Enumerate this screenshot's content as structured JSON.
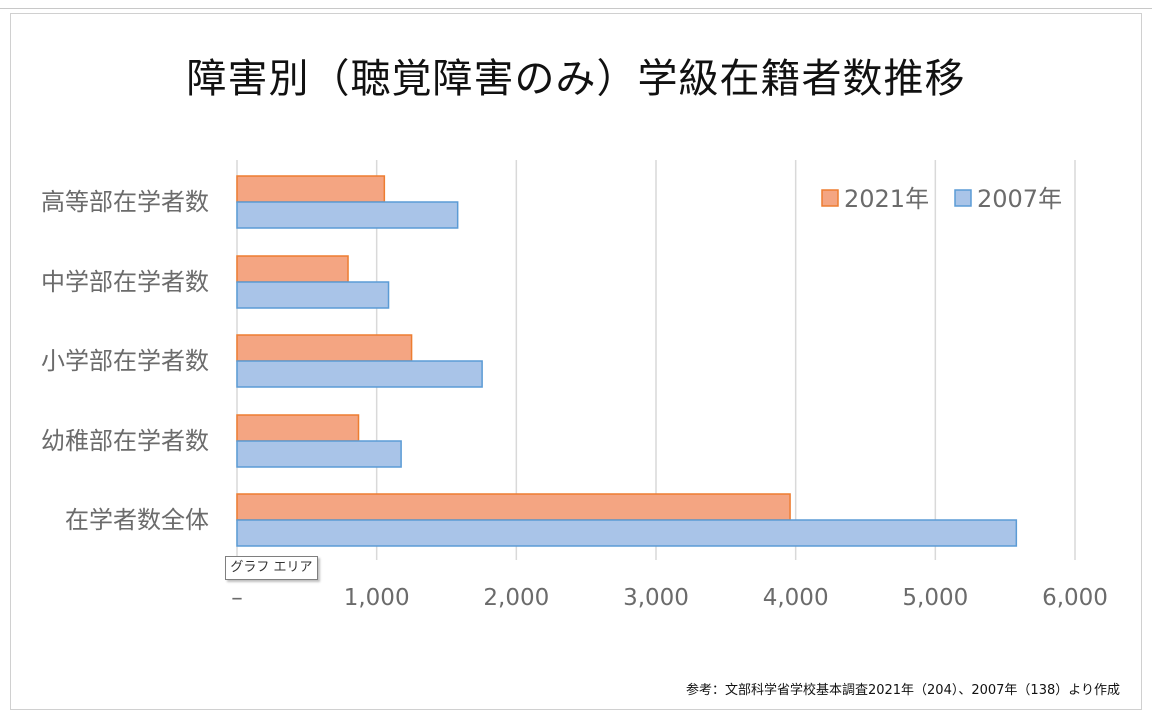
{
  "chart_data": {
    "type": "bar",
    "orientation": "horizontal",
    "title": "障害別（聴覚障害のみ）学級在籍者数推移",
    "categories": [
      "高等部在学者数",
      "中学部在学者数",
      "小学部在学者数",
      "幼稚部在学者数",
      "在学者数全体"
    ],
    "series": [
      {
        "name": "2021年",
        "values": [
          1055,
          795,
          1250,
          870,
          3960
        ],
        "color": "#f4a582",
        "border": "#ed7d31"
      },
      {
        "name": "2007年",
        "values": [
          1580,
          1085,
          1755,
          1175,
          5580
        ],
        "color": "#a9c4e8",
        "border": "#5b9bd5"
      }
    ],
    "xlim": [
      0,
      6000
    ],
    "x_ticks": [
      "–",
      "1,000",
      "2,000",
      "3,000",
      "4,000",
      "5,000",
      "6,000"
    ],
    "grid": true,
    "legend_position": "top-right"
  },
  "tooltip": {
    "label": "グラフ エリア"
  },
  "source_note": "参考：文部科学省学校基本調査2021年（204）、2007年（138）より作成"
}
